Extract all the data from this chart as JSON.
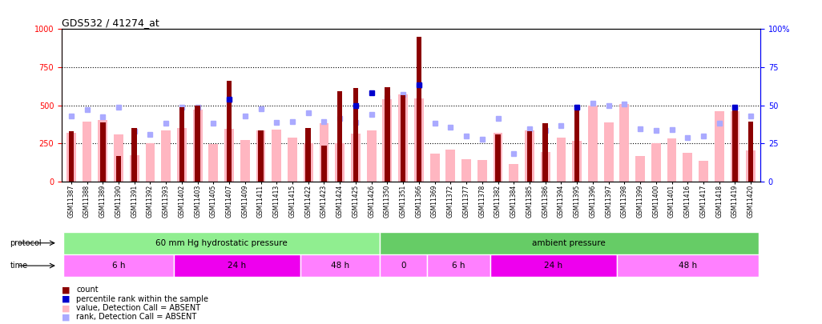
{
  "title": "GDS532 / 41274_at",
  "samples": [
    "GSM11387",
    "GSM11388",
    "GSM11389",
    "GSM11390",
    "GSM11391",
    "GSM11392",
    "GSM11393",
    "GSM11402",
    "GSM11403",
    "GSM11405",
    "GSM11407",
    "GSM11409",
    "GSM11411",
    "GSM11413",
    "GSM11415",
    "GSM11422",
    "GSM11423",
    "GSM11424",
    "GSM11425",
    "GSM11426",
    "GSM11350",
    "GSM11351",
    "GSM11366",
    "GSM11369",
    "GSM11372",
    "GSM11377",
    "GSM11378",
    "GSM11382",
    "GSM11384",
    "GSM11385",
    "GSM11386",
    "GSM11394",
    "GSM11395",
    "GSM11396",
    "GSM11397",
    "GSM11398",
    "GSM11399",
    "GSM11400",
    "GSM11401",
    "GSM11416",
    "GSM11417",
    "GSM11418",
    "GSM11419",
    "GSM11420"
  ],
  "count_values": [
    330,
    0,
    390,
    165,
    350,
    0,
    0,
    490,
    500,
    0,
    660,
    0,
    335,
    0,
    0,
    350,
    235,
    595,
    615,
    0,
    620,
    565,
    950,
    0,
    0,
    0,
    0,
    310,
    0,
    330,
    380,
    0,
    490,
    0,
    0,
    0,
    0,
    0,
    0,
    0,
    0,
    0,
    490,
    395
  ],
  "pink_values": [
    320,
    395,
    405,
    310,
    170,
    250,
    335,
    350,
    470,
    245,
    345,
    270,
    335,
    340,
    290,
    250,
    380,
    250,
    315,
    335,
    540,
    570,
    545,
    185,
    210,
    145,
    140,
    320,
    115,
    335,
    195,
    290,
    265,
    500,
    390,
    510,
    165,
    250,
    285,
    190,
    135,
    460,
    460,
    205
  ],
  "blue_rank_values": [
    430,
    470,
    425,
    490,
    330,
    310,
    380,
    490,
    485,
    385,
    535,
    430,
    475,
    390,
    395,
    450,
    395,
    415,
    390,
    440,
    550,
    570,
    630,
    380,
    355,
    300,
    280,
    415,
    185,
    345,
    335,
    365,
    490,
    515,
    500,
    510,
    345,
    335,
    340,
    290,
    300,
    380,
    490,
    430
  ],
  "dark_blue_rank_values": [
    null,
    null,
    null,
    null,
    null,
    null,
    null,
    null,
    null,
    null,
    540,
    null,
    null,
    null,
    null,
    null,
    null,
    null,
    500,
    580,
    null,
    null,
    635,
    null,
    null,
    null,
    null,
    null,
    null,
    null,
    null,
    null,
    490,
    null,
    null,
    null,
    null,
    null,
    null,
    null,
    null,
    null,
    490,
    null
  ],
  "protocol_groups": [
    {
      "label": "60 mm Hg hydrostatic pressure",
      "start": 0,
      "end": 20,
      "color": "#90EE90"
    },
    {
      "label": "ambient pressure",
      "start": 20,
      "end": 44,
      "color": "#66CC66"
    }
  ],
  "time_groups": [
    {
      "label": "6 h",
      "start": 0,
      "end": 7,
      "color": "#FF80FF"
    },
    {
      "label": "24 h",
      "start": 7,
      "end": 15,
      "color": "#EE00EE"
    },
    {
      "label": "48 h",
      "start": 15,
      "end": 20,
      "color": "#FF80FF"
    },
    {
      "label": "0",
      "start": 20,
      "end": 23,
      "color": "#FF80FF"
    },
    {
      "label": "6 h",
      "start": 23,
      "end": 27,
      "color": "#FF80FF"
    },
    {
      "label": "24 h",
      "start": 27,
      "end": 35,
      "color": "#EE00EE"
    },
    {
      "label": "48 h",
      "start": 35,
      "end": 44,
      "color": "#FF80FF"
    }
  ],
  "ylim_left": [
    0,
    1000
  ],
  "ylim_right": [
    0,
    100
  ],
  "yticks_left": [
    0,
    250,
    500,
    750,
    1000
  ],
  "yticks_right": [
    0,
    25,
    50,
    75,
    100
  ],
  "count_color": "#8B0000",
  "pink_color": "#FFB6C1",
  "blue_rank_color": "#AAAAFF",
  "dark_blue_color": "#0000CD",
  "bg_color": "#F0F0F0"
}
